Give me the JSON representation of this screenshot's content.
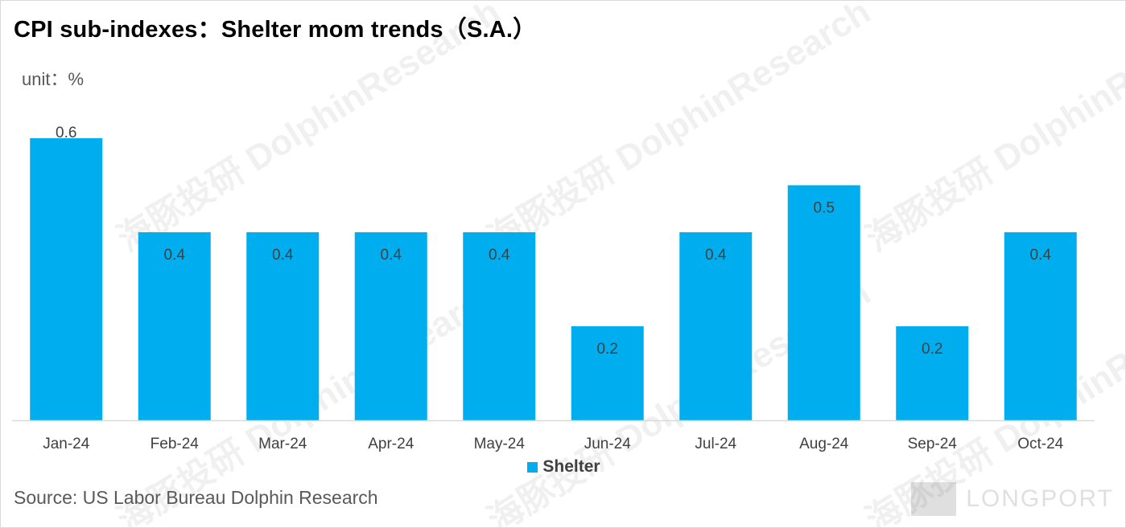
{
  "title": "CPI sub-indexes：Shelter mom trends（S.A.）",
  "unit": "unit：%",
  "source": "Source: US Labor Bureau Dolphin Research",
  "watermark": {
    "cn": "海豚投研",
    "en": "DolphinResearch",
    "logo_text": "LONGPORT"
  },
  "legend": {
    "label": "Shelter",
    "icon": "square-swatch"
  },
  "colors": {
    "bar": "#00AEEF",
    "label_text": "#404040",
    "axis": "#d9d9d9",
    "tick_text": "#404040"
  },
  "chart_data": {
    "type": "bar",
    "categories": [
      "Jan-24",
      "Feb-24",
      "Mar-24",
      "Apr-24",
      "May-24",
      "Jun-24",
      "Jul-24",
      "Aug-24",
      "Sep-24",
      "Oct-24"
    ],
    "series": [
      {
        "name": "Shelter",
        "values": [
          0.6,
          0.4,
          0.4,
          0.4,
          0.4,
          0.2,
          0.4,
          0.5,
          0.2,
          0.4
        ]
      }
    ],
    "data_labels": [
      "0.6",
      "0.4",
      "0.4",
      "0.4",
      "0.4",
      "0.2",
      "0.4",
      "0.5",
      "0.2",
      "0.4"
    ],
    "ylim": [
      0,
      0.6
    ],
    "grid": false,
    "legend_position": "bottom-center"
  }
}
